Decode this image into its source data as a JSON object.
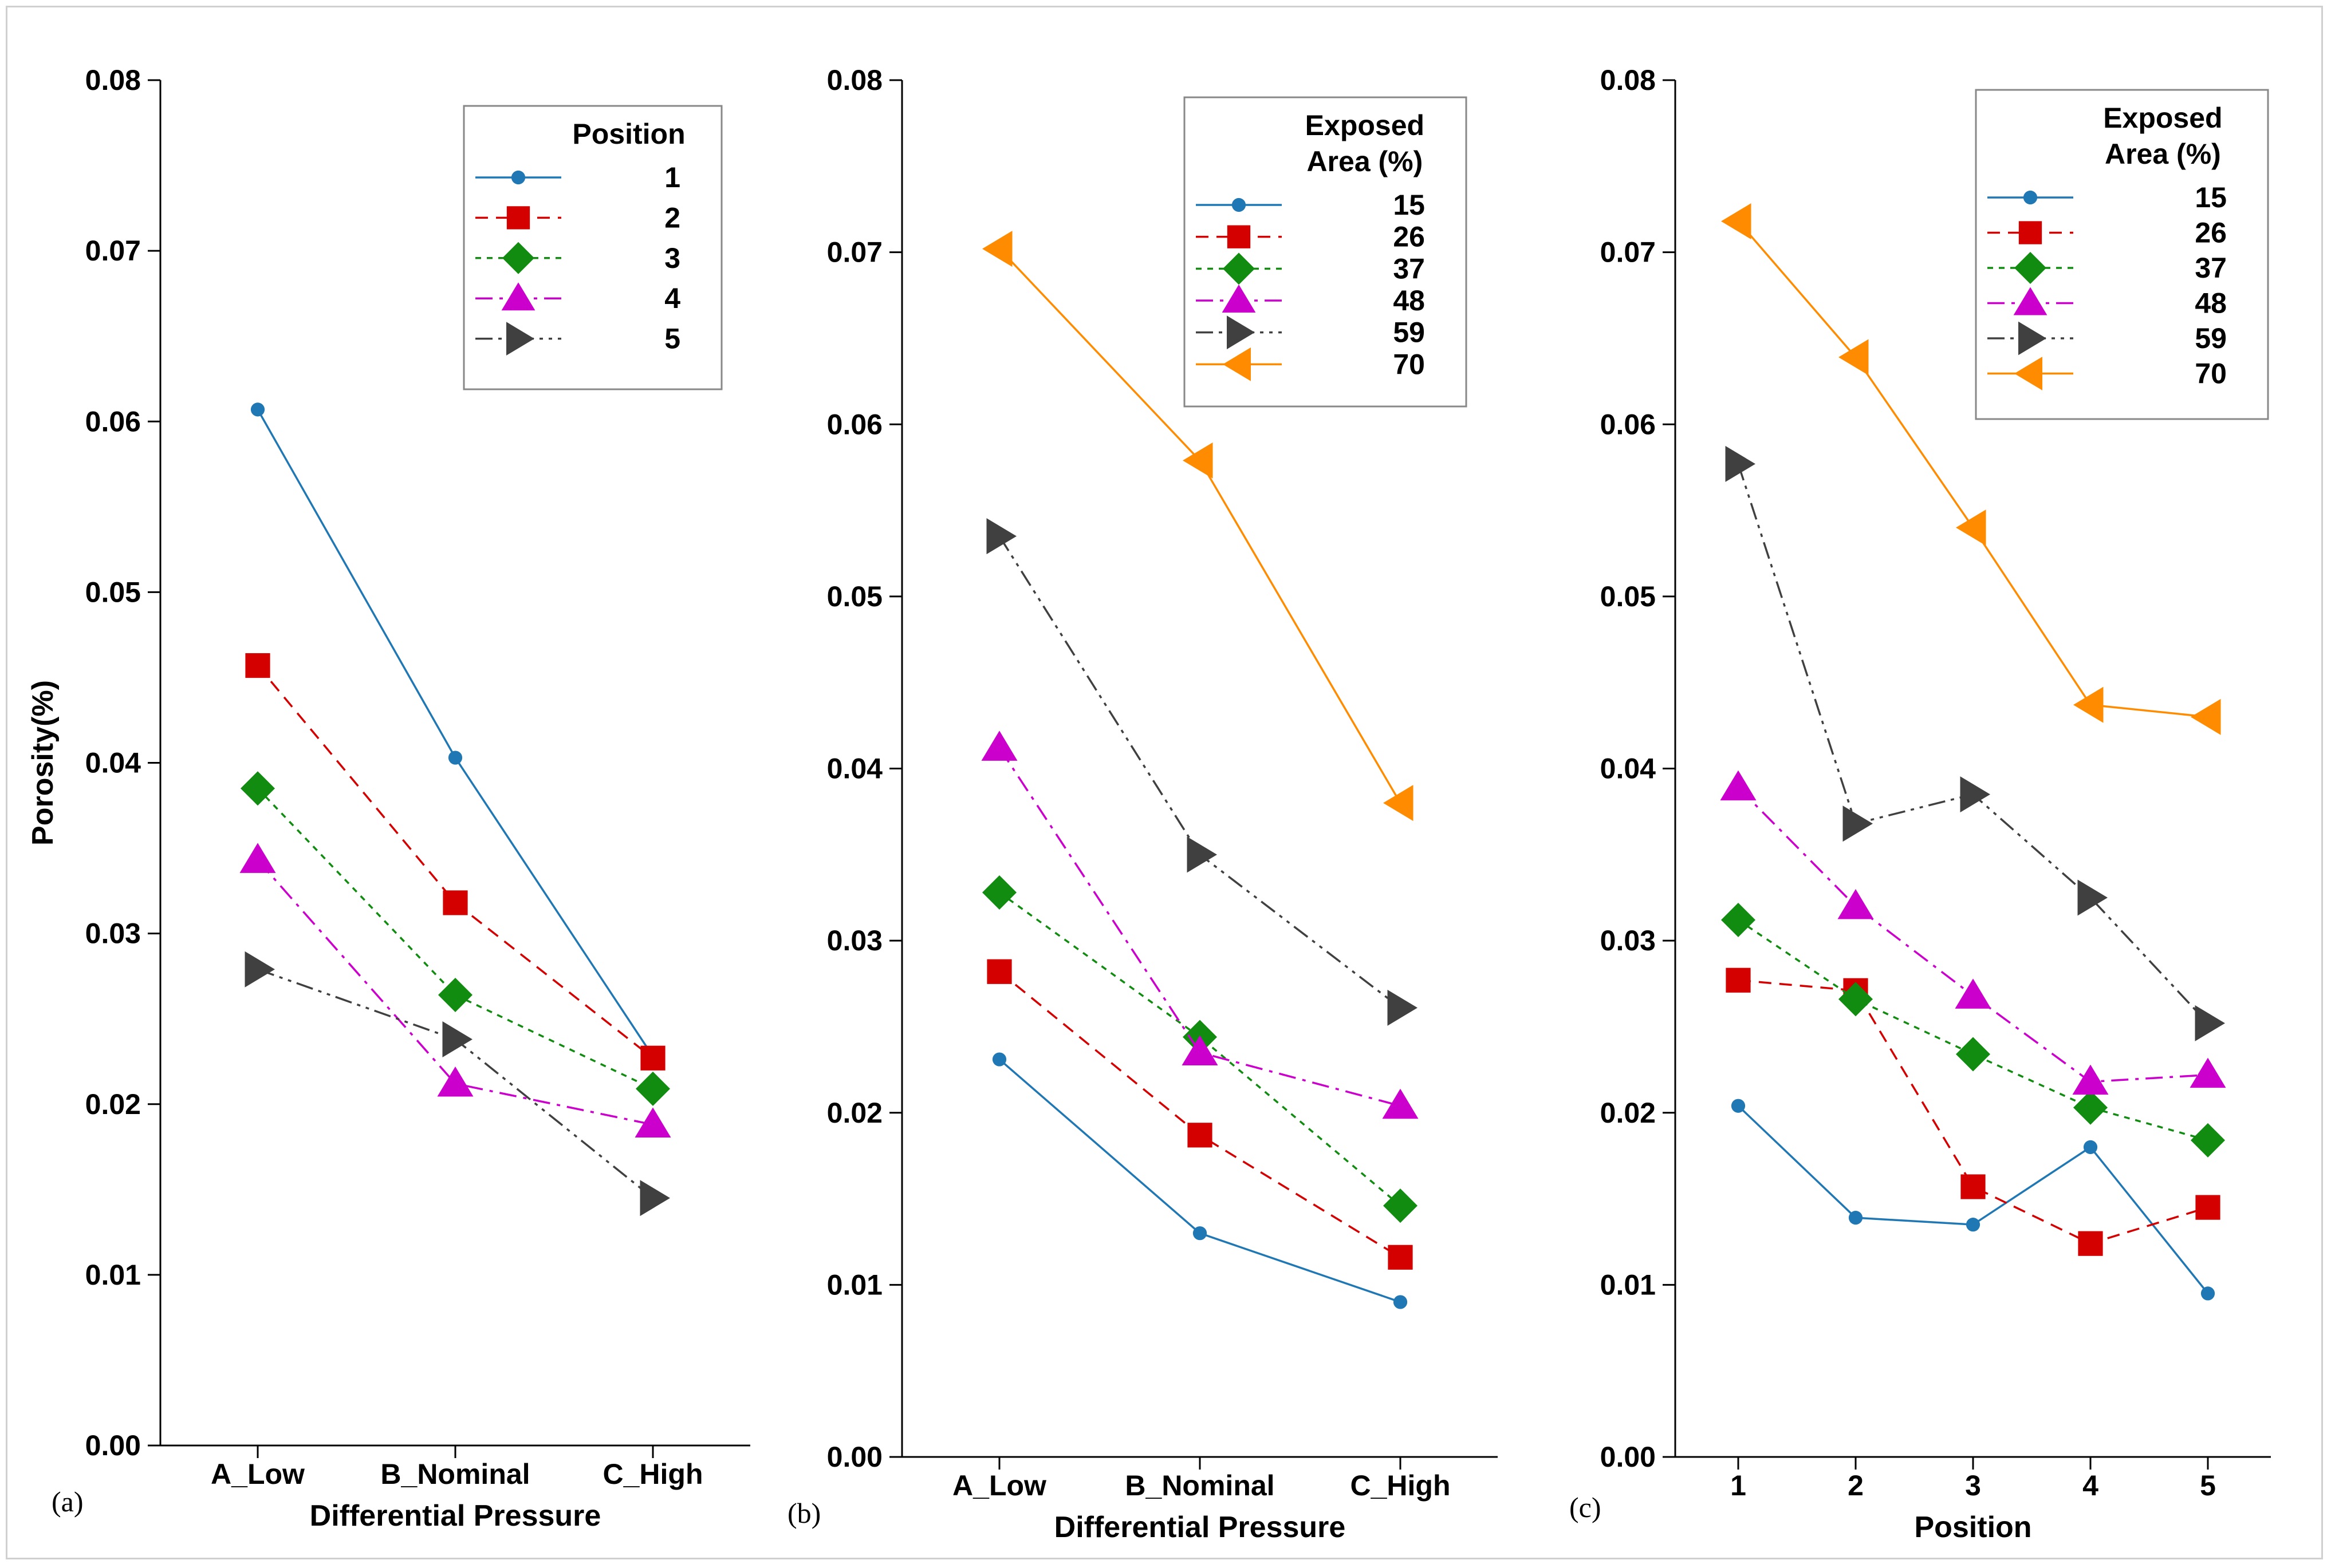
{
  "colors": {
    "series_1": "#1f77b4",
    "series_2": "#d40000",
    "series_3": "#118c11",
    "series_4": "#cc00cc",
    "series_5": "#404040",
    "series_6": "#ff8c00"
  },
  "chart_data": [
    {
      "type": "line",
      "panel_label": "(a)",
      "xlabel": "Differential Pressure",
      "ylabel": "Porosity(%)",
      "categories": [
        "A_Low",
        "B_Nominal",
        "C_High"
      ],
      "ylim": [
        0,
        0.08
      ],
      "yticks": [
        "0.00",
        "0.01",
        "0.02",
        "0.03",
        "0.04",
        "0.05",
        "0.06",
        "0.07",
        "0.08"
      ],
      "legend_title": "Position",
      "legend_position": "top-right",
      "grid": false,
      "series": [
        {
          "name": "1",
          "values": [
            0.0607,
            0.0403,
            0.0228
          ],
          "marker": "circle",
          "dash": "solid",
          "color": "#1f77b4"
        },
        {
          "name": "2",
          "values": [
            0.0457,
            0.0318,
            0.0227
          ],
          "marker": "square",
          "dash": "dashed",
          "color": "#d40000"
        },
        {
          "name": "3",
          "values": [
            0.0385,
            0.0264,
            0.0209
          ],
          "marker": "diamond",
          "dash": "dotted",
          "color": "#118c11"
        },
        {
          "name": "4",
          "values": [
            0.0343,
            0.0212,
            0.0188
          ],
          "marker": "triangle-up",
          "dash": "dashdot",
          "color": "#cc00cc"
        },
        {
          "name": "5",
          "values": [
            0.0279,
            0.0238,
            0.0145
          ],
          "marker": "triangle-right",
          "dash": "dashdotdot",
          "color": "#404040"
        }
      ]
    },
    {
      "type": "line",
      "panel_label": "(b)",
      "xlabel": "Differential Pressure",
      "ylabel": "",
      "categories": [
        "A_Low",
        "B_Nominal",
        "C_High"
      ],
      "ylim": [
        0,
        0.08
      ],
      "yticks": [
        "0.00",
        "0.01",
        "0.02",
        "0.03",
        "0.04",
        "0.05",
        "0.06",
        "0.07",
        "0.08"
      ],
      "legend_title": "Exposed Area (%)",
      "legend_title_lines": [
        "Exposed",
        "Area (%)"
      ],
      "legend_position": "top-right",
      "grid": false,
      "series": [
        {
          "name": "15",
          "values": [
            0.0231,
            0.013,
            0.009
          ],
          "marker": "circle",
          "dash": "solid",
          "color": "#1f77b4"
        },
        {
          "name": "26",
          "values": [
            0.0282,
            0.0187,
            0.0116
          ],
          "marker": "square",
          "dash": "dashed",
          "color": "#d40000"
        },
        {
          "name": "37",
          "values": [
            0.0328,
            0.0244,
            0.0146
          ],
          "marker": "diamond",
          "dash": "dotted",
          "color": "#118c11"
        },
        {
          "name": "48",
          "values": [
            0.0412,
            0.0235,
            0.0204
          ],
          "marker": "triangle-up",
          "dash": "dashdot",
          "color": "#cc00cc"
        },
        {
          "name": "59",
          "values": [
            0.0535,
            0.035,
            0.0261
          ],
          "marker": "triangle-right",
          "dash": "dashdotdot",
          "color": "#404040"
        },
        {
          "name": "70",
          "values": [
            0.0702,
            0.0579,
            0.038
          ],
          "marker": "triangle-left",
          "dash": "solid",
          "color": "#ff8c00"
        }
      ]
    },
    {
      "type": "line",
      "panel_label": "(c)",
      "xlabel": "Position",
      "ylabel": "",
      "categories": [
        "1",
        "2",
        "3",
        "4",
        "5"
      ],
      "ylim": [
        0,
        0.08
      ],
      "yticks": [
        "0.00",
        "0.01",
        "0.02",
        "0.03",
        "0.04",
        "0.05",
        "0.06",
        "0.07",
        "0.08"
      ],
      "legend_title": "Exposed Area (%)",
      "legend_title_lines": [
        "Exposed",
        "Area (%)"
      ],
      "legend_position": "top-right",
      "grid": false,
      "series": [
        {
          "name": "15",
          "values": [
            0.0204,
            0.0139,
            0.0135,
            0.018,
            0.0095
          ],
          "marker": "circle",
          "dash": "solid",
          "color": "#1f77b4"
        },
        {
          "name": "26",
          "values": [
            0.0277,
            0.0271,
            0.0157,
            0.0124,
            0.0145
          ],
          "marker": "square",
          "dash": "dashed",
          "color": "#d40000"
        },
        {
          "name": "37",
          "values": [
            0.0312,
            0.0266,
            0.0234,
            0.0203,
            0.0184
          ],
          "marker": "diamond",
          "dash": "dotted",
          "color": "#118c11"
        },
        {
          "name": "48",
          "values": [
            0.0389,
            0.032,
            0.0268,
            0.0218,
            0.0222
          ],
          "marker": "triangle-up",
          "dash": "dashdot",
          "color": "#cc00cc"
        },
        {
          "name": "59",
          "values": [
            0.0577,
            0.0368,
            0.0385,
            0.0325,
            0.0252
          ],
          "marker": "triangle-right",
          "dash": "dashdotdot",
          "color": "#404040"
        },
        {
          "name": "70",
          "values": [
            0.0718,
            0.0639,
            0.054,
            0.0437,
            0.043
          ],
          "marker": "triangle-left",
          "dash": "solid",
          "color": "#ff8c00"
        }
      ]
    }
  ]
}
